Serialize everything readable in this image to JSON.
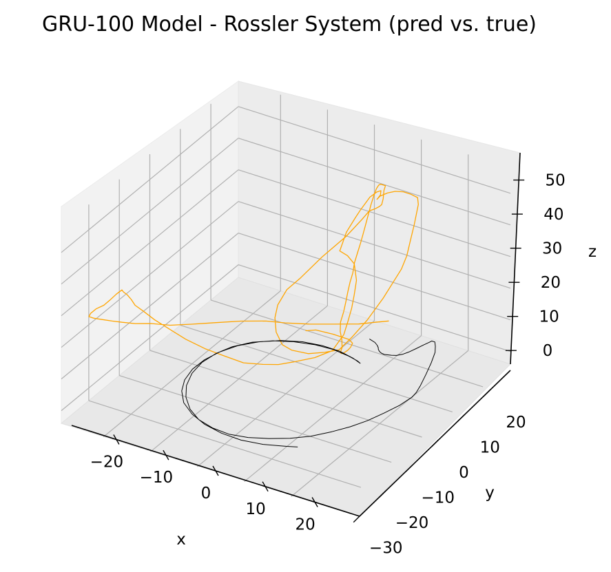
{
  "chart_data": {
    "type": "line",
    "projection": "3d",
    "title": "GRU-100 Model - Rossler System (pred vs. true)",
    "xlabel": "x",
    "ylabel": "y",
    "zlabel": "z",
    "xticks": [
      "−20",
      "−10",
      "0",
      "10",
      "20"
    ],
    "yticks": [
      "−30",
      "−20",
      "−10",
      "0",
      "10",
      "20"
    ],
    "zticks": [
      "0",
      "10",
      "20",
      "30",
      "40",
      "50"
    ],
    "grid": true,
    "legend": "none",
    "series": [
      {
        "color": "#ffa500",
        "label_role": "pred",
        "points": [
          [
            -5.2,
            14.4,
            2.2
          ],
          [
            -5.0,
            14.4,
            2.1
          ],
          [
            -3.5,
            15.2,
            2.4
          ],
          [
            0.1,
            15.3,
            2.7
          ],
          [
            4.0,
            14.6,
            3.4
          ],
          [
            5.5,
            13.4,
            3.9
          ],
          [
            6.0,
            12.0,
            4.0
          ],
          [
            6.3,
            10.6,
            4.3
          ],
          [
            6.3,
            9.4,
            4.5
          ],
          [
            6.3,
            8.6,
            4.8
          ],
          [
            6.4,
            8.0,
            5.7
          ],
          [
            6.9,
            7.8,
            7.6
          ],
          [
            7.0,
            7.6,
            10.3
          ],
          [
            6.7,
            7.5,
            12.9
          ],
          [
            6.5,
            7.9,
            15.4
          ],
          [
            6.4,
            9.1,
            17.7
          ],
          [
            6.4,
            9.8,
            20.2
          ],
          [
            6.3,
            10.6,
            22.7
          ],
          [
            6.3,
            11.3,
            25.1
          ],
          [
            6.4,
            12.1,
            27.6
          ],
          [
            6.3,
            12.8,
            30.2
          ],
          [
            6.3,
            13.8,
            32.6
          ],
          [
            6.5,
            14.4,
            35.0
          ],
          [
            6.7,
            15.0,
            37.7
          ],
          [
            7.0,
            15.4,
            40.6
          ],
          [
            7.3,
            15.8,
            43.5
          ],
          [
            7.6,
            16.2,
            46.4
          ],
          [
            8.0,
            16.5,
            49.2
          ],
          [
            8.5,
            16.6,
            51.6
          ],
          [
            9.0,
            16.6,
            53.0
          ],
          [
            9.5,
            16.5,
            53.6
          ],
          [
            10.5,
            16.5,
            53.6
          ],
          [
            10.5,
            16.0,
            52.5
          ],
          [
            10.8,
            15.3,
            50.6
          ],
          [
            10.8,
            14.8,
            49.1
          ],
          [
            10.5,
            14.5,
            48.6
          ],
          [
            10.0,
            14.0,
            48.1
          ],
          [
            9.0,
            13.5,
            47.3
          ],
          [
            8.0,
            12.5,
            44.8
          ],
          [
            6.0,
            10.5,
            40.2
          ],
          [
            3.0,
            7.4,
            34.9
          ],
          [
            0.0,
            4.8,
            28.8
          ],
          [
            -1.8,
            3.1,
            25.6
          ],
          [
            -3.3,
            2.4,
            20.6
          ],
          [
            -3.7,
            2.1,
            16.6
          ],
          [
            -3.3,
            1.9,
            12.4
          ],
          [
            -2.2,
            2.2,
            8.7
          ],
          [
            -1.0,
            3.5,
            6.5
          ],
          [
            1.5,
            5.0,
            5.4
          ],
          [
            4.0,
            6.5,
            5.8
          ],
          [
            6.0,
            8.2,
            6.2
          ],
          [
            7.7,
            9.8,
            9.7
          ],
          [
            9.5,
            12.1,
            14.2
          ],
          [
            11.0,
            15.0,
            19.5
          ],
          [
            12.8,
            18.2,
            27.0
          ],
          [
            13.6,
            18.7,
            31.1
          ],
          [
            14.1,
            19.2,
            36.1
          ],
          [
            14.6,
            19.6,
            40.7
          ],
          [
            15.1,
            20.2,
            46.9
          ],
          [
            15.0,
            20.1,
            49.1
          ],
          [
            14.2,
            19.1,
            50.6
          ],
          [
            13.2,
            18.2,
            51.6
          ],
          [
            12.1,
            17.2,
            52.0
          ],
          [
            11.1,
            16.2,
            51.8
          ],
          [
            10.2,
            15.2,
            51.2
          ],
          [
            9.8,
            14.8,
            50.3
          ],
          [
            10.2,
            15.3,
            51.5
          ],
          [
            10.5,
            15.0,
            53.2
          ],
          [
            10.0,
            14.5,
            53.0
          ],
          [
            9.0,
            13.7,
            51.5
          ],
          [
            8.4,
            13.1,
            49.7
          ],
          [
            7.8,
            12.5,
            47.9
          ],
          [
            7.2,
            11.8,
            45.8
          ],
          [
            6.2,
            10.3,
            41.8
          ],
          [
            5.5,
            9.2,
            36.4
          ],
          [
            6.5,
            10.2,
            34.6
          ],
          [
            7.3,
            11.2,
            31.6
          ],
          [
            7.7,
            11.3,
            26.5
          ],
          [
            7.6,
            10.7,
            22.3
          ],
          [
            7.4,
            10.2,
            18.5
          ],
          [
            7.0,
            9.6,
            14.6
          ],
          [
            6.5,
            9.0,
            10.6
          ],
          [
            5.0,
            7.5,
            6.0
          ],
          [
            2.8,
            5.2,
            4.6
          ],
          [
            0.0,
            2.6,
            4.0
          ],
          [
            -2.0,
            0.6,
            3.8
          ],
          [
            -4.0,
            -1.4,
            4.5
          ],
          [
            -6.5,
            -3.9,
            5.8
          ],
          [
            -9.0,
            -6.4,
            8.8
          ],
          [
            -11.5,
            -8.8,
            11.8
          ],
          [
            -14.0,
            -11.3,
            15.6
          ],
          [
            -16.0,
            -13.3,
            19.3
          ],
          [
            -18.0,
            -15.3,
            23.0
          ],
          [
            -19.5,
            -16.8,
            26.3
          ],
          [
            -20.5,
            -17.9,
            28.5
          ],
          [
            -21.0,
            -18.4,
            30.5
          ],
          [
            -21.5,
            -18.9,
            32.1
          ],
          [
            -22.0,
            -19.4,
            33.2
          ],
          [
            -22.2,
            -19.6,
            33.9
          ],
          [
            -22.8,
            -20.5,
            33.0
          ],
          [
            -23.5,
            -21.6,
            31.6
          ],
          [
            -24.3,
            -22.3,
            30.2
          ],
          [
            -25.3,
            -23.3,
            29.4
          ],
          [
            -26.0,
            -24.0,
            28.2
          ],
          [
            -26.3,
            -24.1,
            27.1
          ],
          [
            -25.8,
            -23.3,
            26.2
          ],
          [
            -24.8,
            -22.1,
            25.3
          ],
          [
            -23.5,
            -20.8,
            24.4
          ],
          [
            -22.2,
            -19.5,
            23.6
          ],
          [
            -20.6,
            -17.7,
            22.5
          ],
          [
            -18.6,
            -15.6,
            21.8
          ],
          [
            -16.3,
            -12.9,
            20.2
          ],
          [
            -13.6,
            -10.0,
            19.5
          ],
          [
            -10.6,
            -7.0,
            19.0
          ],
          [
            -7.2,
            -3.7,
            18.5
          ],
          [
            -4.0,
            -0.4,
            17.4
          ],
          [
            -1.5,
            2.1,
            16.0
          ],
          [
            1.5,
            5.2,
            14.6
          ],
          [
            4.8,
            8.5,
            13.5
          ],
          [
            8.0,
            11.6,
            12.6
          ],
          [
            10.5,
            14.0,
            12.5
          ],
          [
            12.0,
            15.3,
            12.5
          ]
        ]
      },
      {
        "color": "#000000",
        "label_role": "true",
        "points": [
          [
            10.0,
            12.0,
            8.5
          ],
          [
            11.5,
            11.5,
            8.5
          ],
          [
            12.3,
            11.0,
            8.4
          ],
          [
            12.8,
            10.6,
            8.2
          ],
          [
            13.0,
            10.3,
            8.0
          ],
          [
            13.3,
            10.1,
            7.8
          ],
          [
            13.6,
            10.0,
            7.6
          ],
          [
            14.0,
            9.9,
            7.5
          ],
          [
            14.5,
            10.0,
            7.3
          ],
          [
            15.0,
            10.3,
            7.2
          ],
          [
            15.6,
            10.6,
            7.1
          ],
          [
            16.4,
            11.0,
            7.1
          ],
          [
            17.3,
            11.6,
            7.4
          ],
          [
            18.2,
            12.3,
            8.0
          ],
          [
            19.1,
            13.3,
            8.7
          ],
          [
            20.1,
            14.2,
            9.6
          ],
          [
            20.9,
            14.9,
            10.3
          ],
          [
            21.2,
            15.2,
            10.6
          ],
          [
            21.8,
            15.3,
            10.5
          ],
          [
            22.1,
            15.0,
            9.5
          ],
          [
            22.3,
            14.6,
            8.0
          ],
          [
            22.2,
            13.5,
            5.5
          ],
          [
            22.0,
            12.0,
            2.8
          ],
          [
            21.8,
            10.5,
            0.4
          ],
          [
            21.6,
            9.5,
            -1.0
          ],
          [
            21.5,
            8.3,
            -1.5
          ],
          [
            21.0,
            5.0,
            -1.7
          ],
          [
            20.0,
            1.5,
            -1.8
          ],
          [
            18.8,
            -2.2,
            -1.9
          ],
          [
            17.3,
            -5.5,
            -1.9
          ],
          [
            15.4,
            -8.6,
            -1.9
          ],
          [
            13.0,
            -11.8,
            -1.9
          ],
          [
            10.2,
            -14.3,
            -1.9
          ],
          [
            7.0,
            -16.3,
            -1.9
          ],
          [
            3.6,
            -17.9,
            -1.9
          ],
          [
            0.0,
            -18.7,
            -1.9
          ],
          [
            -3.7,
            -18.4,
            -1.9
          ],
          [
            -7.3,
            -17.3,
            -1.9
          ],
          [
            -10.6,
            -15.1,
            -1.9
          ],
          [
            -13.5,
            -12.0,
            -1.9
          ],
          [
            -15.6,
            -8.6,
            -1.9
          ],
          [
            -17.0,
            -4.6,
            -1.9
          ],
          [
            -17.5,
            -0.6,
            -1.9
          ],
          [
            -17.0,
            3.3,
            -1.9
          ],
          [
            -15.8,
            6.6,
            -1.9
          ],
          [
            -13.6,
            9.7,
            -1.9
          ],
          [
            -10.6,
            12.1,
            -1.9
          ],
          [
            -7.3,
            13.7,
            -1.9
          ],
          [
            -3.4,
            14.8,
            -1.9
          ],
          [
            0.3,
            15.1,
            -1.9
          ],
          [
            4.0,
            14.6,
            -1.9
          ],
          [
            6.2,
            14.0,
            -1.9
          ],
          [
            7.0,
            13.6,
            -1.9
          ],
          [
            5.0,
            14.4,
            -1.9
          ],
          [
            1.6,
            15.2,
            -1.9
          ],
          [
            -2.2,
            15.2,
            -1.9
          ],
          [
            -5.9,
            14.5,
            -1.9
          ],
          [
            -9.4,
            12.9,
            -1.9
          ],
          [
            -12.6,
            10.5,
            -1.9
          ],
          [
            -15.1,
            7.5,
            -1.9
          ],
          [
            -16.7,
            4.1,
            -1.9
          ],
          [
            -17.6,
            0.4,
            -1.9
          ],
          [
            -17.7,
            -3.4,
            -1.9
          ],
          [
            -16.9,
            -7.2,
            -1.9
          ],
          [
            -15.3,
            -10.6,
            -1.9
          ],
          [
            -12.8,
            -13.8,
            -1.9
          ],
          [
            -9.4,
            -16.3,
            -1.9
          ],
          [
            -5.5,
            -18.1,
            -1.9
          ],
          [
            -1.3,
            -19.1,
            -1.9
          ],
          [
            3.0,
            -19.3,
            -1.9
          ],
          [
            7.2,
            -18.5,
            -1.9
          ],
          [
            11.2,
            -16.9,
            -1.9
          ],
          [
            13.0,
            -16.1,
            -1.9
          ]
        ]
      }
    ]
  }
}
